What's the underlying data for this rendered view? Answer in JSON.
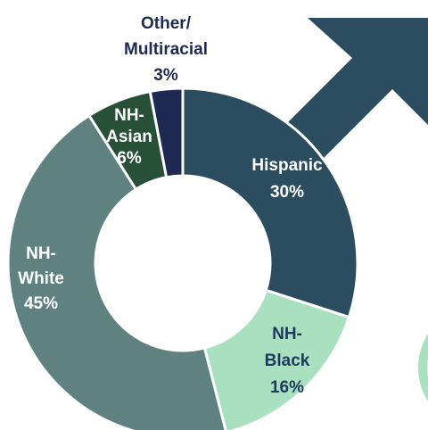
{
  "chart_data": {
    "type": "donut",
    "categories": [
      "Hispanic",
      "NH-Black",
      "NH-White",
      "NH-Asian",
      "Other/Multiracial"
    ],
    "values": [
      30,
      16,
      45,
      6,
      3
    ],
    "value_labels": [
      "30%",
      "16%",
      "45%",
      "6%",
      "3%"
    ],
    "colors": [
      "#2b4d5f",
      "#a8e0c0",
      "#5f8280",
      "#285038",
      "#1e2a52"
    ]
  }
}
